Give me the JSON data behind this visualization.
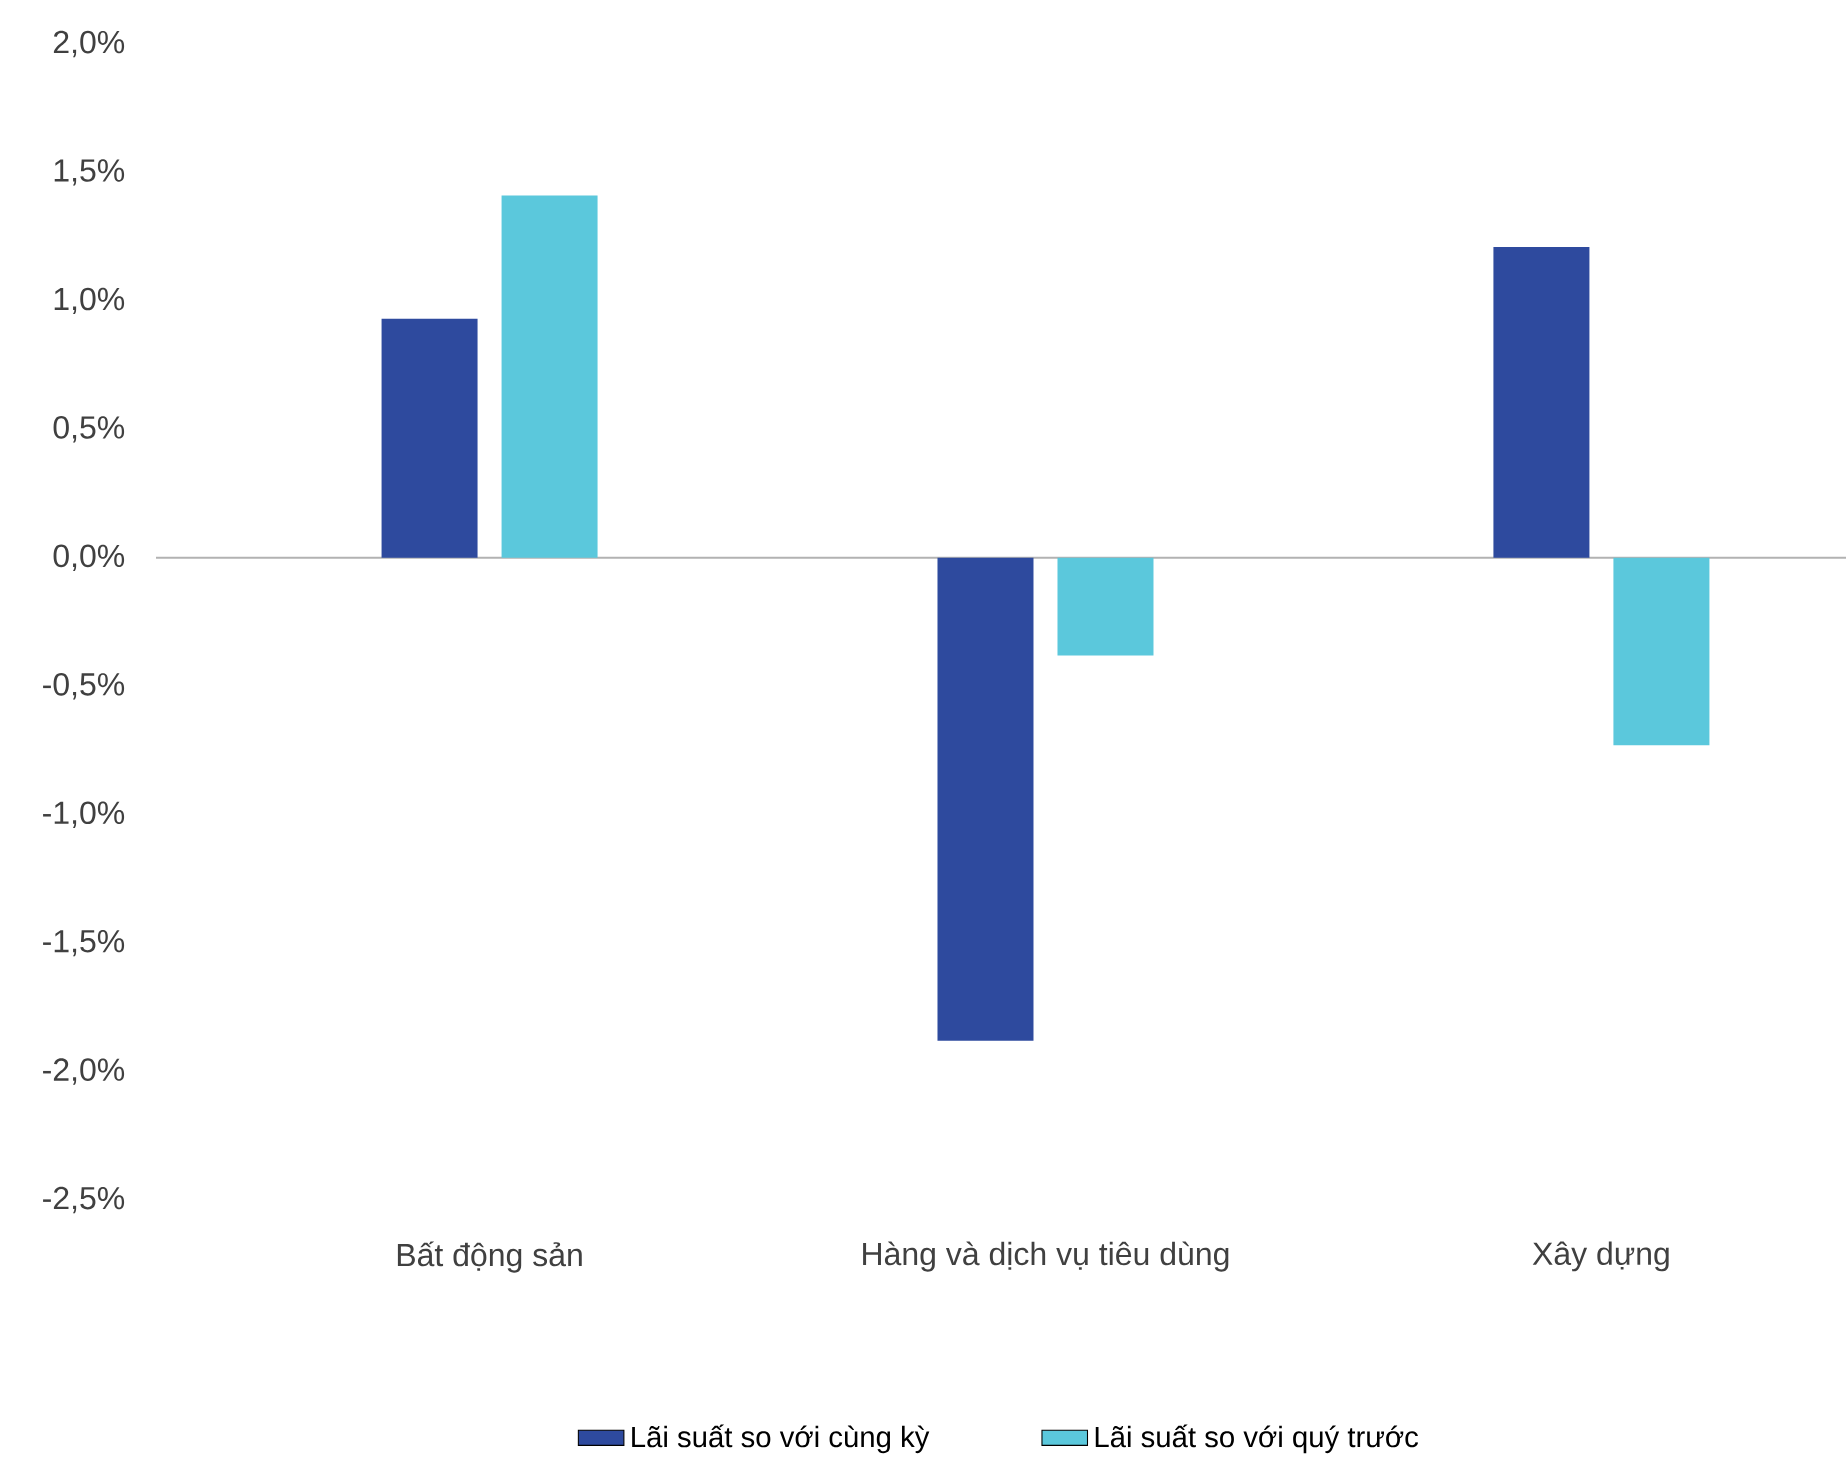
{
  "chart_data": {
    "type": "bar",
    "categories": [
      "Bất động sản",
      "Hàng và dịch vụ tiêu dùng",
      "Xây dựng"
    ],
    "series": [
      {
        "name": "Lãi suất so với cùng kỳ",
        "color": "#2e4a9e",
        "values": [
          0.93,
          -1.88,
          1.21
        ]
      },
      {
        "name": "Lãi suất so với quý trước",
        "color": "#5bc8dc",
        "values": [
          1.41,
          -0.38,
          -0.73
        ]
      }
    ],
    "ylim": [
      -2.5,
      2.0
    ],
    "yticks": [
      {
        "value": -2.5,
        "label": "-2,5%"
      },
      {
        "value": -2.0,
        "label": "-2,0%"
      },
      {
        "value": -1.5,
        "label": "-1,5%"
      },
      {
        "value": -1.0,
        "label": "-1,0%"
      },
      {
        "value": -0.5,
        "label": "-0,5%"
      },
      {
        "value": 0,
        "label": "0,0%"
      },
      {
        "value": 0.5,
        "label": "0,5%"
      },
      {
        "value": 1.0,
        "label": "1,0%"
      },
      {
        "value": 1.5,
        "label": "1,5%"
      },
      {
        "value": 2.0,
        "label": "2,0%"
      }
    ],
    "legend": "bottom"
  }
}
